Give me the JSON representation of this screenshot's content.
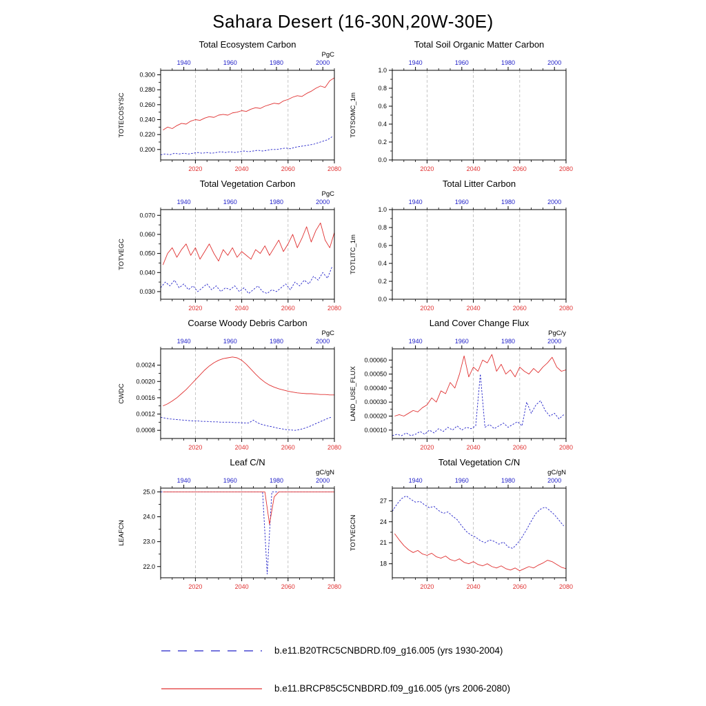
{
  "title": "Sahara Desert (16-30N,20W-30E)",
  "colors": {
    "red_series": "#e03030",
    "blue_series": "#2020c8",
    "grid": "#b8b8b8",
    "axis": "#000000"
  },
  "legend": {
    "entries": [
      {
        "label": "b.e11.B20TRC5CNBDRD.f09_g16.005 (yrs 1930-2004)",
        "color": "#2020c8",
        "style": "dashed"
      },
      {
        "label": "b.e11.BRCP85C5CNBDRD.f09_g16.005 (yrs 2006-2080)",
        "color": "#e03030",
        "style": "solid"
      }
    ]
  },
  "chart_data": [
    {
      "type": "line",
      "title": "Total Ecosystem Carbon",
      "ylabel": "TOTECOSYSC",
      "unit": "PgC",
      "ylim": [
        0.186,
        0.306
      ],
      "yticks": [
        0.2,
        0.22,
        0.24,
        0.26,
        0.28,
        0.3
      ],
      "ytick_labels": [
        "0.200",
        "0.220",
        "0.240",
        "0.260",
        "0.280",
        "0.300"
      ],
      "x_top": {
        "range": [
          1930,
          2005
        ],
        "ticks": [
          1940,
          1960,
          1980,
          2000
        ],
        "minor_step": 5
      },
      "x_bottom": {
        "range": [
          2005,
          2080
        ],
        "ticks": [
          2020,
          2040,
          2060,
          2080
        ],
        "minor_step": 5
      },
      "gridlines_at": [
        2020,
        2040,
        2060
      ],
      "series": [
        {
          "name": "b.e11.B20TRC5CNBDRD.f09_g16.005",
          "axis": "top",
          "color": "blue",
          "style": "dashed",
          "x_start": 1930,
          "x_step": 2,
          "values": [
            0.193,
            0.194,
            0.193,
            0.195,
            0.194,
            0.195,
            0.194,
            0.195,
            0.196,
            0.195,
            0.196,
            0.195,
            0.196,
            0.197,
            0.196,
            0.197,
            0.196,
            0.197,
            0.198,
            0.197,
            0.198,
            0.199,
            0.198,
            0.199,
            0.2,
            0.2,
            0.201,
            0.202,
            0.201,
            0.203,
            0.204,
            0.205,
            0.206,
            0.207,
            0.209,
            0.211,
            0.213,
            0.217
          ]
        },
        {
          "name": "b.e11.BRCP85C5CNBDRD.f09_g16.005",
          "axis": "bottom",
          "color": "red",
          "style": "solid",
          "x_start": 2006,
          "x_step": 2,
          "values": [
            0.226,
            0.23,
            0.228,
            0.232,
            0.235,
            0.234,
            0.238,
            0.24,
            0.239,
            0.242,
            0.244,
            0.243,
            0.246,
            0.247,
            0.246,
            0.249,
            0.25,
            0.252,
            0.251,
            0.254,
            0.256,
            0.255,
            0.258,
            0.26,
            0.262,
            0.261,
            0.265,
            0.267,
            0.27,
            0.272,
            0.271,
            0.275,
            0.278,
            0.282,
            0.285,
            0.283,
            0.292,
            0.296
          ]
        }
      ]
    },
    {
      "type": "line",
      "title": "Total Soil Organic Matter Carbon",
      "ylabel": "TOTSOMC_1m",
      "unit": "",
      "ylim": [
        0.0,
        1.0
      ],
      "yticks": [
        0.0,
        0.2,
        0.4,
        0.6,
        0.8,
        1.0
      ],
      "ytick_labels": [
        "0.0",
        "0.2",
        "0.4",
        "0.6",
        "0.8",
        "1.0"
      ],
      "x_top": {
        "range": [
          1930,
          2005
        ],
        "ticks": [
          1940,
          1960,
          1980,
          2000
        ],
        "minor_step": 5
      },
      "x_bottom": {
        "range": [
          2005,
          2080
        ],
        "ticks": [
          2020,
          2040,
          2060,
          2080
        ],
        "minor_step": 5
      },
      "gridlines_at": [
        2020,
        2040,
        2060
      ],
      "series": []
    },
    {
      "type": "line",
      "title": "Total Vegetation Carbon",
      "ylabel": "TOTVEGC",
      "unit": "PgC",
      "ylim": [
        0.026,
        0.073
      ],
      "yticks": [
        0.03,
        0.04,
        0.05,
        0.06,
        0.07
      ],
      "ytick_labels": [
        "0.030",
        "0.040",
        "0.050",
        "0.060",
        "0.070"
      ],
      "x_top": {
        "range": [
          1930,
          2005
        ],
        "ticks": [
          1940,
          1960,
          1980,
          2000
        ],
        "minor_step": 5
      },
      "x_bottom": {
        "range": [
          2005,
          2080
        ],
        "ticks": [
          2020,
          2040,
          2060,
          2080
        ],
        "minor_step": 5
      },
      "gridlines_at": [
        2020,
        2040,
        2060
      ],
      "series": [
        {
          "name": "b.e11.B20TRC5CNBDRD.f09_g16.005",
          "axis": "top",
          "color": "blue",
          "style": "dashed",
          "x_start": 1930,
          "x_step": 2,
          "values": [
            0.032,
            0.035,
            0.033,
            0.036,
            0.032,
            0.034,
            0.031,
            0.033,
            0.03,
            0.032,
            0.034,
            0.031,
            0.033,
            0.03,
            0.032,
            0.031,
            0.033,
            0.03,
            0.032,
            0.029,
            0.031,
            0.033,
            0.03,
            0.029,
            0.031,
            0.03,
            0.032,
            0.034,
            0.031,
            0.035,
            0.033,
            0.036,
            0.034,
            0.038,
            0.036,
            0.04,
            0.037,
            0.043
          ]
        },
        {
          "name": "b.e11.BRCP85C5CNBDRD.f09_g16.005",
          "axis": "bottom",
          "color": "red",
          "style": "solid",
          "x_start": 2006,
          "x_step": 2,
          "values": [
            0.044,
            0.05,
            0.053,
            0.048,
            0.052,
            0.055,
            0.049,
            0.053,
            0.047,
            0.051,
            0.055,
            0.05,
            0.046,
            0.052,
            0.049,
            0.053,
            0.048,
            0.051,
            0.049,
            0.047,
            0.052,
            0.05,
            0.054,
            0.049,
            0.053,
            0.057,
            0.051,
            0.055,
            0.06,
            0.053,
            0.058,
            0.064,
            0.056,
            0.062,
            0.066,
            0.057,
            0.053,
            0.061
          ]
        }
      ]
    },
    {
      "type": "line",
      "title": "Total Litter Carbon",
      "ylabel": "TOTLITC_1m",
      "unit": "",
      "ylim": [
        0.0,
        1.0
      ],
      "yticks": [
        0.0,
        0.2,
        0.4,
        0.6,
        0.8,
        1.0
      ],
      "ytick_labels": [
        "0.0",
        "0.2",
        "0.4",
        "0.6",
        "0.8",
        "1.0"
      ],
      "x_top": {
        "range": [
          1930,
          2005
        ],
        "ticks": [
          1940,
          1960,
          1980,
          2000
        ],
        "minor_step": 5
      },
      "x_bottom": {
        "range": [
          2005,
          2080
        ],
        "ticks": [
          2020,
          2040,
          2060,
          2080
        ],
        "minor_step": 5
      },
      "gridlines_at": [
        2020,
        2040,
        2060
      ],
      "series": []
    },
    {
      "type": "line",
      "title": "Coarse Woody Debris Carbon",
      "ylabel": "CWDC",
      "unit": "PgC",
      "ylim": [
        0.0006,
        0.0028
      ],
      "yticks": [
        0.0008,
        0.0012,
        0.0016,
        0.002,
        0.0024
      ],
      "ytick_labels": [
        "0.0008",
        "0.0012",
        "0.0016",
        "0.0020",
        "0.0024"
      ],
      "x_top": {
        "range": [
          1930,
          2005
        ],
        "ticks": [
          1940,
          1960,
          1980,
          2000
        ],
        "minor_step": 5
      },
      "x_bottom": {
        "range": [
          2005,
          2080
        ],
        "ticks": [
          2020,
          2040,
          2060,
          2080
        ],
        "minor_step": 5
      },
      "gridlines_at": [
        2020,
        2040,
        2060
      ],
      "series": [
        {
          "name": "b.e11.B20TRC5CNBDRD.f09_g16.005",
          "axis": "top",
          "color": "blue",
          "style": "dashed",
          "x_start": 1930,
          "x_step": 2,
          "values": [
            0.00112,
            0.0011,
            0.00108,
            0.00107,
            0.00106,
            0.00105,
            0.00104,
            0.00103,
            0.00103,
            0.00102,
            0.00102,
            0.00101,
            0.00101,
            0.001,
            0.001,
            0.001,
            0.00099,
            0.00099,
            0.00098,
            0.00098,
            0.00105,
            0.00098,
            0.00094,
            0.00091,
            0.00089,
            0.00086,
            0.00084,
            0.00082,
            0.00081,
            0.0008,
            0.00082,
            0.00085,
            0.00089,
            0.00094,
            0.00099,
            0.00104,
            0.00109,
            0.00113
          ]
        },
        {
          "name": "b.e11.BRCP85C5CNBDRD.f09_g16.005",
          "axis": "bottom",
          "color": "red",
          "style": "solid",
          "x_start": 2006,
          "x_step": 2,
          "values": [
            0.0014,
            0.00145,
            0.00152,
            0.0016,
            0.0017,
            0.0018,
            0.00192,
            0.00204,
            0.00216,
            0.00228,
            0.00238,
            0.00246,
            0.00252,
            0.00256,
            0.00258,
            0.0026,
            0.00258,
            0.00252,
            0.00242,
            0.0023,
            0.00218,
            0.00207,
            0.00198,
            0.00191,
            0.00186,
            0.00182,
            0.00179,
            0.00176,
            0.00174,
            0.00172,
            0.00171,
            0.0017,
            0.0017,
            0.00169,
            0.00168,
            0.00168,
            0.00167,
            0.00167
          ]
        }
      ]
    },
    {
      "type": "line",
      "title": "Land Cover Change Flux",
      "ylabel": "LAND_USE_FLUX",
      "unit": "PgC/y",
      "ylim": [
        4e-05,
        0.00068
      ],
      "yticks": [
        0.0001,
        0.0002,
        0.0003,
        0.0004,
        0.0005,
        0.0006
      ],
      "ytick_labels": [
        "0.00010",
        "0.00020",
        "0.00030",
        "0.00040",
        "0.00050",
        "0.00060"
      ],
      "x_top": {
        "range": [
          1930,
          2005
        ],
        "ticks": [
          1940,
          1960,
          1980,
          2000
        ],
        "minor_step": 5
      },
      "x_bottom": {
        "range": [
          2005,
          2080
        ],
        "ticks": [
          2020,
          2040,
          2060,
          2080
        ],
        "minor_step": 5
      },
      "gridlines_at": [
        2020,
        2040,
        2060
      ],
      "series": [
        {
          "name": "b.e11.B20TRC5CNBDRD.f09_g16.005",
          "axis": "top",
          "color": "blue",
          "style": "dashed",
          "x_start": 1930,
          "x_step": 2,
          "values": [
            6e-05,
            7e-05,
            6e-05,
            8e-05,
            6e-05,
            7e-05,
            9e-05,
            7e-05,
            0.0001,
            8e-05,
            0.00011,
            9e-05,
            0.00012,
            0.0001,
            0.00013,
            0.0001,
            0.00012,
            0.00011,
            0.00013,
            0.0005,
            0.00012,
            0.00014,
            0.00011,
            0.00013,
            0.00015,
            0.00012,
            0.00014,
            0.00016,
            0.00013,
            0.0003,
            0.00022,
            0.00028,
            0.00031,
            0.00024,
            0.0002,
            0.00022,
            0.00018,
            0.00021
          ]
        },
        {
          "name": "b.e11.BRCP85C5CNBDRD.f09_g16.005",
          "axis": "bottom",
          "color": "red",
          "style": "solid",
          "x_start": 2006,
          "x_step": 2,
          "values": [
            0.0002,
            0.00021,
            0.0002,
            0.00022,
            0.00024,
            0.00023,
            0.00026,
            0.00028,
            0.00033,
            0.0003,
            0.00038,
            0.00036,
            0.00044,
            0.0004,
            0.0005,
            0.00063,
            0.00048,
            0.00055,
            0.00052,
            0.0006,
            0.00058,
            0.00064,
            0.00052,
            0.00057,
            0.0005,
            0.00053,
            0.00048,
            0.00055,
            0.00052,
            0.0005,
            0.00054,
            0.00051,
            0.00055,
            0.00058,
            0.00062,
            0.00055,
            0.00052,
            0.00053
          ]
        }
      ]
    },
    {
      "type": "line",
      "title": "Leaf C/N",
      "ylabel": "LEAFCN",
      "unit": "gC/gN",
      "ylim": [
        21.55,
        25.15
      ],
      "yticks": [
        22.0,
        23.0,
        24.0,
        25.0
      ],
      "ytick_labels": [
        "22.0",
        "23.0",
        "24.0",
        "25.0"
      ],
      "x_top": {
        "range": [
          1930,
          2005
        ],
        "ticks": [
          1940,
          1960,
          1980,
          2000
        ],
        "minor_step": 5
      },
      "x_bottom": {
        "range": [
          2005,
          2080
        ],
        "ticks": [
          2020,
          2040,
          2060,
          2080
        ],
        "minor_step": 5
      },
      "gridlines_at": [
        2020,
        2040,
        2060
      ],
      "series": [
        {
          "name": "b.e11.B20TRC5CNBDRD.f09_g16.005",
          "axis": "top",
          "color": "blue",
          "style": "dashed",
          "x_start": 1930,
          "x_step": 2,
          "values": [
            25.0,
            25.0,
            25.0,
            25.0,
            25.0,
            25.0,
            25.0,
            25.0,
            25.0,
            25.0,
            25.0,
            25.0,
            25.0,
            25.0,
            25.0,
            25.0,
            25.0,
            25.0,
            25.0,
            25.0,
            25.0,
            25.0,
            25.0,
            21.7,
            25.0,
            25.0,
            25.0,
            25.0,
            25.0,
            25.0,
            25.0,
            25.0,
            25.0,
            25.0,
            25.0,
            25.0,
            25.0,
            25.0
          ]
        },
        {
          "name": "b.e11.BRCP85C5CNBDRD.f09_g16.005",
          "axis": "bottom",
          "color": "red",
          "style": "solid",
          "x_start": 2006,
          "x_step": 2,
          "values": [
            25.0,
            25.0,
            25.0,
            25.0,
            25.0,
            25.0,
            25.0,
            25.0,
            25.0,
            25.0,
            25.0,
            25.0,
            25.0,
            25.0,
            25.0,
            25.0,
            25.0,
            25.0,
            25.0,
            25.0,
            25.0,
            25.0,
            25.0,
            23.7,
            24.8,
            25.0,
            25.0,
            25.0,
            25.0,
            25.0,
            25.0,
            25.0,
            25.0,
            25.0,
            25.0,
            25.0,
            25.0,
            25.0
          ]
        }
      ]
    },
    {
      "type": "line",
      "title": "Total Vegetation C/N",
      "ylabel": "TOTVEGCN",
      "unit": "gC/gN",
      "ylim": [
        16.0,
        28.8
      ],
      "yticks": [
        18,
        21,
        24,
        27
      ],
      "ytick_labels": [
        "18",
        "21",
        "24",
        "27"
      ],
      "x_top": {
        "range": [
          1930,
          2005
        ],
        "ticks": [
          1940,
          1960,
          1980,
          2000
        ],
        "minor_step": 5
      },
      "x_bottom": {
        "range": [
          2005,
          2080
        ],
        "ticks": [
          2020,
          2040,
          2060,
          2080
        ],
        "minor_step": 5
      },
      "gridlines_at": [
        2020,
        2040,
        2060
      ],
      "series": [
        {
          "name": "b.e11.B20TRC5CNBDRD.f09_g16.005",
          "axis": "top",
          "color": "blue",
          "style": "dashed",
          "x_start": 1930,
          "x_step": 2,
          "values": [
            25.5,
            26.5,
            27.3,
            27.7,
            27.2,
            26.8,
            26.9,
            26.4,
            26.0,
            26.2,
            25.6,
            25.2,
            25.4,
            24.8,
            24.3,
            23.4,
            22.6,
            22.1,
            21.8,
            21.3,
            21.0,
            21.4,
            21.2,
            20.8,
            21.1,
            20.4,
            20.2,
            20.9,
            21.8,
            22.9,
            24.1,
            25.2,
            25.8,
            26.1,
            25.6,
            25.0,
            24.2,
            23.4
          ]
        },
        {
          "name": "b.e11.BRCP85C5CNBDRD.f09_g16.005",
          "axis": "bottom",
          "color": "red",
          "style": "solid",
          "x_start": 2006,
          "x_step": 2,
          "values": [
            22.3,
            21.4,
            20.6,
            20.0,
            19.6,
            19.9,
            19.4,
            19.2,
            19.5,
            19.0,
            18.8,
            19.1,
            18.6,
            18.4,
            18.7,
            18.2,
            18.0,
            18.3,
            17.9,
            17.7,
            18.0,
            17.6,
            17.4,
            17.7,
            17.3,
            17.1,
            17.4,
            17.0,
            17.3,
            17.6,
            17.4,
            17.8,
            18.1,
            18.5,
            18.3,
            17.9,
            17.5,
            17.3
          ]
        }
      ]
    }
  ]
}
